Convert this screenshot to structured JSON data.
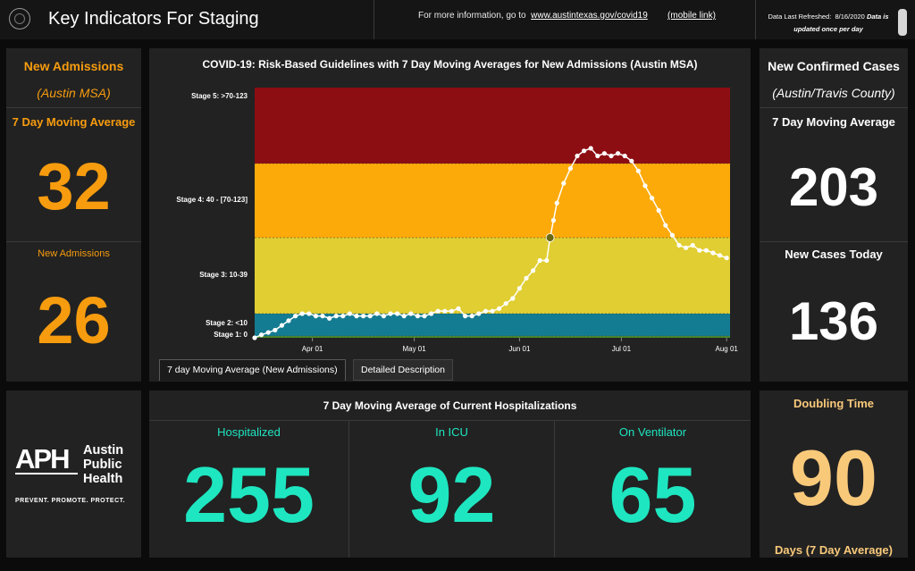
{
  "header": {
    "title": "Key Indicators For Staging",
    "more_info_prefix": "For more information, go to",
    "more_info_link": "www.austintexas.gov/covid19",
    "mobile_link": "(mobile link)",
    "refresh_label": "Data Last Refreshed:",
    "refresh_date": "8/16/2020",
    "refresh_note_a": "Data is",
    "refresh_note_b": "updated once per day"
  },
  "left": {
    "title": "New Admissions",
    "region": "(Austin MSA)",
    "avg_label": "7 Day Moving Average",
    "avg_value": "32",
    "today_label": "New Admissions",
    "today_value": "26"
  },
  "right": {
    "title": "New Confirmed Cases",
    "region": "(Austin/Travis County)",
    "avg_label": "7 Day Moving Average",
    "avg_value": "203",
    "today_label": "New Cases Today",
    "today_value": "136"
  },
  "chart": {
    "tabs": [
      "7 day Moving Average (New Admissions)",
      "Detailed Description"
    ]
  },
  "chart_data": {
    "type": "line",
    "title": "COVID-19: Risk-Based Guidelines with 7 Day Moving Averages for New Admissions (Austin MSA)",
    "xlabel": "",
    "ylabel": "",
    "x_tick_labels": [
      "Apr 01",
      "May 01",
      "Jun 01",
      "Jul 01",
      "Aug 01"
    ],
    "band_labels": [
      "Stage 5: >70-123",
      "Stage 4: 40 - [70-123]",
      "Stage 3: 10-39",
      "Stage 2: <10",
      "Stage 1: 0"
    ],
    "bands": [
      {
        "name": "Stage 1",
        "from": 0,
        "to": 0.5,
        "color": "#4a8a2c"
      },
      {
        "name": "Stage 2",
        "from": 0.5,
        "to": 10,
        "color": "#147c92"
      },
      {
        "name": "Stage 3",
        "from": 10,
        "to": 40,
        "color": "#e0ce32"
      },
      {
        "name": "Stage 4",
        "from": 40,
        "to": 70,
        "color": "#fcaa0a"
      },
      {
        "name": "Stage 5",
        "from": 70,
        "to": 100,
        "color": "#8c0d12"
      }
    ],
    "ylim": [
      0,
      100
    ],
    "x_start": "2020-03-15",
    "x_end": "2020-08-02",
    "highlight_date": "2020-06-10",
    "series": [
      {
        "values": [
          [
            "2020-03-15",
            0
          ],
          [
            "2020-03-17",
            1
          ],
          [
            "2020-03-19",
            2
          ],
          [
            "2020-03-21",
            3
          ],
          [
            "2020-03-23",
            5
          ],
          [
            "2020-03-25",
            7
          ],
          [
            "2020-03-27",
            9
          ],
          [
            "2020-03-29",
            10
          ],
          [
            "2020-03-31",
            10
          ],
          [
            "2020-04-02",
            9
          ],
          [
            "2020-04-04",
            9
          ],
          [
            "2020-04-06",
            8
          ],
          [
            "2020-04-08",
            9
          ],
          [
            "2020-04-10",
            9
          ],
          [
            "2020-04-12",
            10
          ],
          [
            "2020-04-14",
            9
          ],
          [
            "2020-04-16",
            9
          ],
          [
            "2020-04-18",
            9
          ],
          [
            "2020-04-20",
            10
          ],
          [
            "2020-04-22",
            9
          ],
          [
            "2020-04-24",
            10
          ],
          [
            "2020-04-26",
            10
          ],
          [
            "2020-04-28",
            9
          ],
          [
            "2020-04-30",
            10
          ],
          [
            "2020-05-02",
            9
          ],
          [
            "2020-05-04",
            9
          ],
          [
            "2020-05-06",
            10
          ],
          [
            "2020-05-08",
            11
          ],
          [
            "2020-05-10",
            11
          ],
          [
            "2020-05-12",
            11
          ],
          [
            "2020-05-14",
            12
          ],
          [
            "2020-05-16",
            9
          ],
          [
            "2020-05-18",
            9
          ],
          [
            "2020-05-20",
            10
          ],
          [
            "2020-05-22",
            11
          ],
          [
            "2020-05-24",
            11
          ],
          [
            "2020-05-26",
            12
          ],
          [
            "2020-05-28",
            14
          ],
          [
            "2020-05-30",
            16
          ],
          [
            "2020-06-01",
            20
          ],
          [
            "2020-06-03",
            24
          ],
          [
            "2020-06-05",
            27
          ],
          [
            "2020-06-07",
            31
          ],
          [
            "2020-06-09",
            31
          ],
          [
            "2020-06-10",
            40
          ],
          [
            "2020-06-11",
            47
          ],
          [
            "2020-06-12",
            54
          ],
          [
            "2020-06-14",
            62
          ],
          [
            "2020-06-16",
            68
          ],
          [
            "2020-06-18",
            73
          ],
          [
            "2020-06-20",
            75
          ],
          [
            "2020-06-22",
            76
          ],
          [
            "2020-06-24",
            73
          ],
          [
            "2020-06-26",
            74
          ],
          [
            "2020-06-28",
            73
          ],
          [
            "2020-06-30",
            74
          ],
          [
            "2020-07-02",
            73
          ],
          [
            "2020-07-04",
            71
          ],
          [
            "2020-07-06",
            67
          ],
          [
            "2020-07-08",
            61
          ],
          [
            "2020-07-10",
            56
          ],
          [
            "2020-07-12",
            51
          ],
          [
            "2020-07-14",
            45
          ],
          [
            "2020-07-16",
            41
          ],
          [
            "2020-07-18",
            37
          ],
          [
            "2020-07-20",
            36
          ],
          [
            "2020-07-22",
            37
          ],
          [
            "2020-07-24",
            35
          ],
          [
            "2020-07-26",
            35
          ],
          [
            "2020-07-28",
            34
          ],
          [
            "2020-07-30",
            33
          ],
          [
            "2020-08-01",
            32
          ]
        ]
      }
    ]
  },
  "hospital": {
    "title": "7 Day Moving Average of Current Hospitalizations",
    "items": [
      {
        "label": "Hospitalized",
        "value": "255"
      },
      {
        "label": "In ICU",
        "value": "92"
      },
      {
        "label": "On Ventilator",
        "value": "65"
      }
    ]
  },
  "logo": {
    "mark": "APH",
    "line1": "Austin",
    "line2": "Public",
    "line3": "Health",
    "tagline": "PREVENT. PROMOTE. PROTECT."
  },
  "doubling": {
    "title": "Doubling Time",
    "value": "90",
    "unit": "Days (7 Day Average)"
  },
  "colors": {
    "orange": "#f79c0f",
    "teal": "#1ee6c0",
    "peach": "#f9c97a",
    "panel": "#222222"
  }
}
